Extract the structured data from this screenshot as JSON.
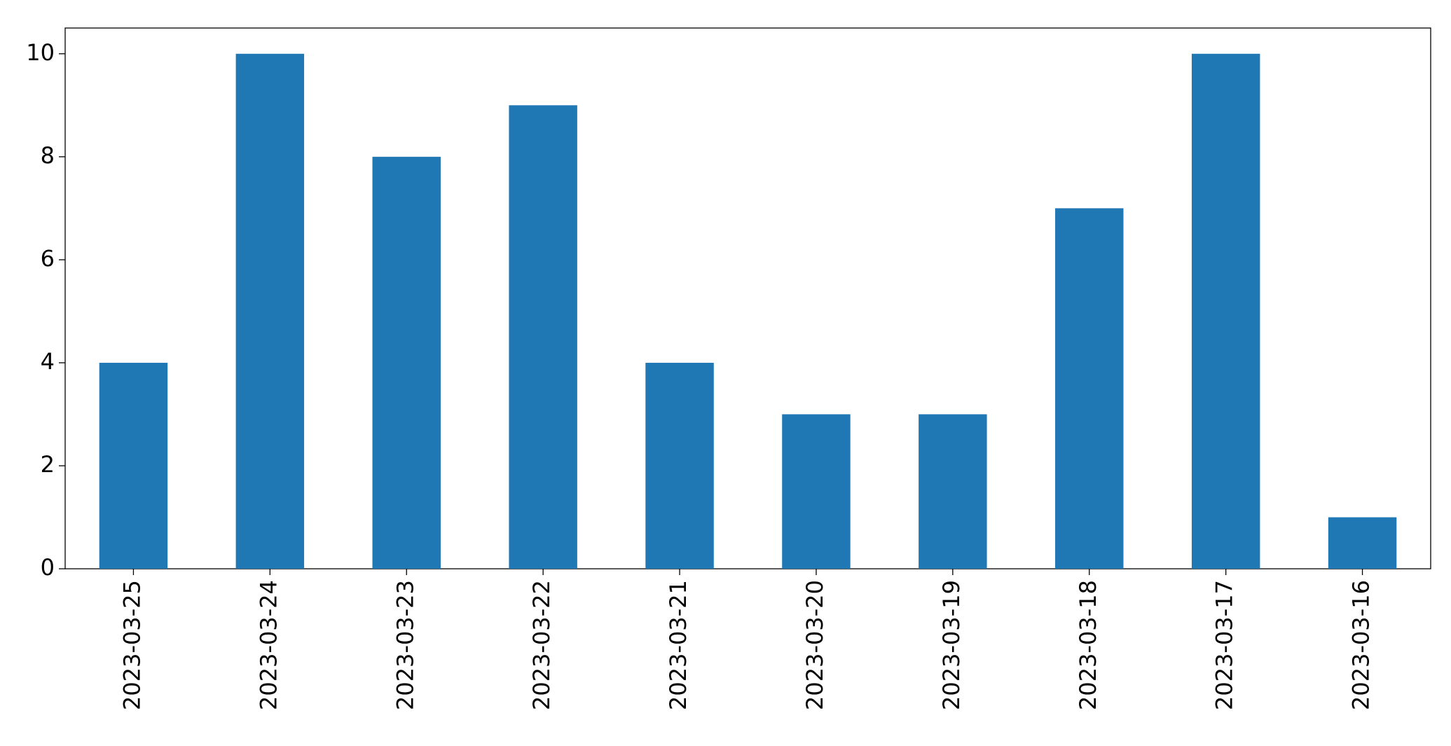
{
  "chart_data": {
    "type": "bar",
    "categories": [
      "2023-03-25",
      "2023-03-24",
      "2023-03-23",
      "2023-03-22",
      "2023-03-21",
      "2023-03-20",
      "2023-03-19",
      "2023-03-18",
      "2023-03-17",
      "2023-03-16"
    ],
    "values": [
      4,
      10,
      8,
      9,
      4,
      3,
      3,
      7,
      10,
      1
    ],
    "color": "#1f77b4",
    "ylim": [
      0,
      10.5
    ],
    "yticks": [
      0,
      2,
      4,
      6,
      8,
      10
    ],
    "grid": false
  }
}
